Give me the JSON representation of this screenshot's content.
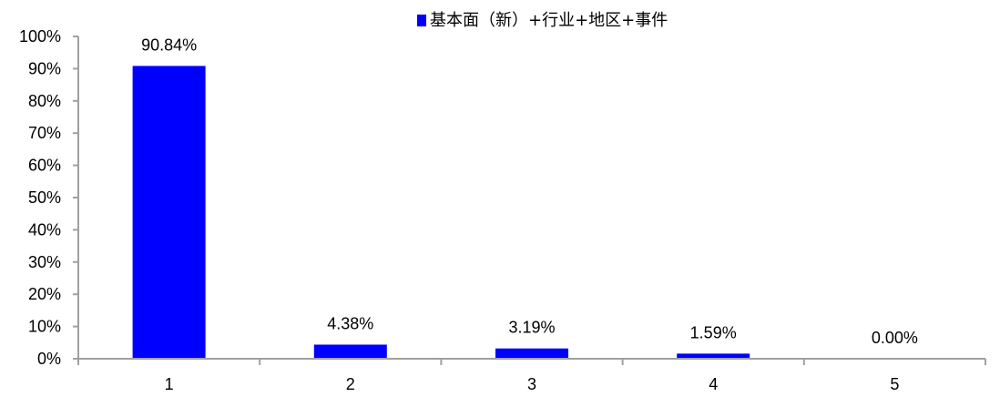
{
  "chart_data": {
    "type": "bar",
    "title": "",
    "xlabel": "",
    "ylabel": "",
    "categories": [
      "1",
      "2",
      "3",
      "4",
      "5"
    ],
    "series": [
      {
        "name": "基本面（新）+行业+地区+事件",
        "values": [
          90.84,
          4.38,
          3.19,
          1.59,
          0.0
        ],
        "data_labels": [
          "90.84%",
          "4.38%",
          "3.19%",
          "1.59%",
          "0.00%"
        ],
        "color": "#0000ff"
      }
    ],
    "ylim": [
      0,
      100
    ],
    "yticks": [
      "0%",
      "10%",
      "20%",
      "30%",
      "40%",
      "50%",
      "60%",
      "70%",
      "80%",
      "90%",
      "100%"
    ],
    "grid": false,
    "legend_position": "top",
    "axis_color": "#a0a0a0"
  }
}
